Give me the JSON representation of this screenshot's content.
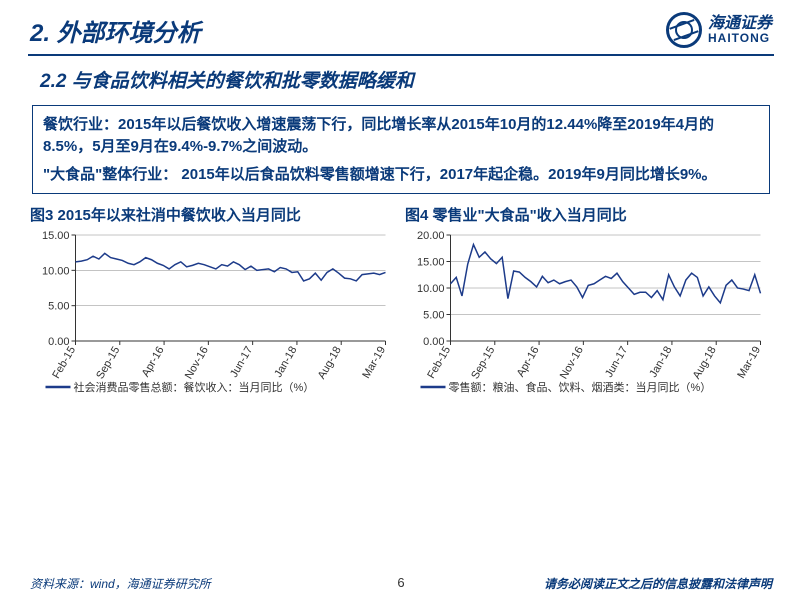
{
  "header": {
    "title": "2. 外部环境分析",
    "logo": {
      "cn": "海通证券",
      "en": "HAITONG"
    }
  },
  "subtitle": "2.2 与食品饮料相关的餐饮和批零数据略缓和",
  "textbox": {
    "p1": "餐饮行业：2015年以后餐饮收入增速震荡下行，同比增长率从2015年10月的12.44%降至2019年4月的8.5%，5月至9月在9.4%-9.7%之间波动。",
    "p2": "\"大食品\"整体行业： 2015年以后食品饮料零售额增速下行，2017年起企稳。2019年9月同比增长9%。"
  },
  "chart3": {
    "title": "图3  2015年以来社消中餐饮收入当月同比",
    "type": "line",
    "ylim": [
      0,
      15
    ],
    "yticks": [
      0,
      5,
      10,
      15
    ],
    "ytick_suffix": ".00",
    "xticks": [
      "Feb-15",
      "Sep-15",
      "Apr-16",
      "Nov-16",
      "Jun-17",
      "Jan-18",
      "Aug-18",
      "Mar-19"
    ],
    "series": [
      {
        "name": "社会消费品零售总额：餐饮收入：当月同比（%）",
        "color": "#1d3b8a",
        "values": [
          11.2,
          11.3,
          11.5,
          12.0,
          11.6,
          12.4,
          11.8,
          11.6,
          11.4,
          11.0,
          10.8,
          11.2,
          11.8,
          11.5,
          11.0,
          10.7,
          10.2,
          10.8,
          11.2,
          10.5,
          10.7,
          11.0,
          10.8,
          10.5,
          10.2,
          10.8,
          10.6,
          11.2,
          10.8,
          10.1,
          10.6,
          10.0,
          10.1,
          10.2,
          9.8,
          10.4,
          10.2,
          9.7,
          9.8,
          8.5,
          8.8,
          9.6,
          8.6,
          9.7,
          10.2,
          9.6,
          8.9,
          8.8,
          8.5,
          9.4,
          9.5,
          9.6,
          9.4,
          9.7
        ]
      }
    ],
    "grid_color": "#888",
    "axis_color": "#333",
    "tick_font": 11,
    "legend_font": 11,
    "line_width": 1.5,
    "legend": "社会消费品零售总额：餐饮收入：当月同比（%）"
  },
  "chart4": {
    "title": "图4  零售业\"大食品\"收入当月同比",
    "type": "line",
    "ylim": [
      0,
      20
    ],
    "yticks": [
      0,
      5,
      10,
      15,
      20
    ],
    "ytick_suffix": ".00",
    "xticks": [
      "Feb-15",
      "Sep-15",
      "Apr-16",
      "Nov-16",
      "Jun-17",
      "Jan-18",
      "Aug-18",
      "Mar-19"
    ],
    "series": [
      {
        "name": "零售额：粮油、食品、饮料、烟酒类：当月同比（%）",
        "color": "#1d3b8a",
        "values": [
          10.8,
          12.0,
          8.5,
          14.5,
          18.2,
          15.8,
          16.8,
          15.5,
          14.6,
          15.8,
          8.0,
          13.2,
          13.0,
          12.0,
          11.2,
          10.2,
          12.2,
          11.0,
          11.5,
          10.8,
          11.2,
          11.5,
          10.2,
          8.2,
          10.5,
          10.8,
          11.5,
          12.2,
          11.8,
          12.8,
          11.2,
          10.0,
          8.8,
          9.2,
          9.2,
          8.2,
          9.5,
          7.8,
          12.5,
          10.2,
          8.5,
          11.5,
          12.8,
          12.0,
          8.5,
          10.2,
          8.5,
          7.2,
          10.5,
          11.5,
          10.0,
          9.8,
          9.5,
          12.5,
          9.0
        ]
      }
    ],
    "grid_color": "#888",
    "axis_color": "#333",
    "tick_font": 11,
    "legend_font": 11,
    "line_width": 1.5,
    "legend": "零售额：粮油、食品、饮料、烟酒类：当月同比（%）"
  },
  "footer": {
    "source": "资料来源：wind，海通证券研究所",
    "page": "6",
    "disclaimer": "请务必阅读正文之后的信息披露和法律声明"
  }
}
